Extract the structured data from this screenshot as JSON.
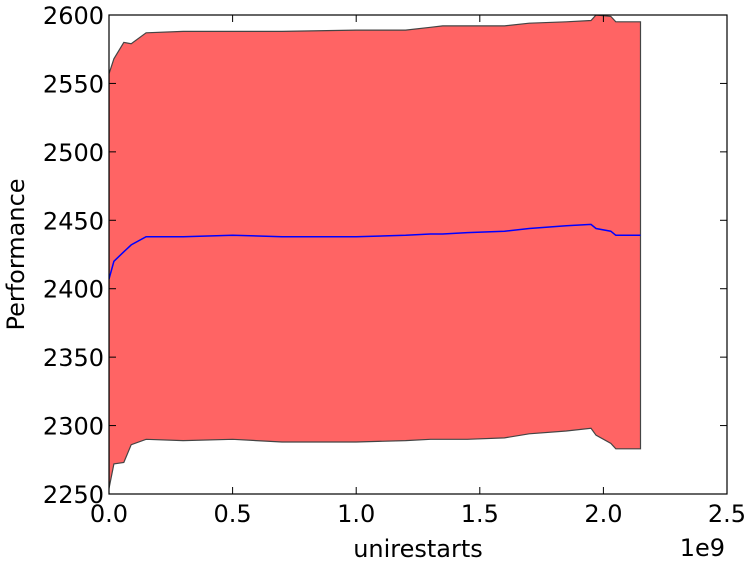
{
  "chart_data": {
    "type": "area",
    "xlabel": "unirestarts",
    "ylabel": "Performance",
    "x_offset_label": "1e9",
    "xlim": [
      0.0,
      2.5
    ],
    "ylim": [
      2250,
      2600
    ],
    "x_ticks": [
      "0.0",
      "0.5",
      "1.0",
      "1.5",
      "2.0",
      "2.5"
    ],
    "y_ticks": [
      "2250",
      "2300",
      "2350",
      "2400",
      "2450",
      "2500",
      "2550",
      "2600"
    ],
    "grid": false,
    "colors": {
      "band": "#ff6464",
      "band_edge": "#444444",
      "mean": "#0000ff"
    },
    "series": [
      {
        "x": [
          0.0,
          0.02,
          0.06,
          0.09,
          0.15,
          0.3,
          0.5,
          0.7,
          1.0,
          1.2,
          1.3,
          1.35,
          1.45,
          1.6,
          1.7,
          1.85,
          1.95,
          1.97,
          2.03,
          2.05,
          2.15
        ],
        "mean": [
          2407,
          2420,
          2427,
          2432,
          2438,
          2438,
          2439,
          2438,
          2438,
          2439,
          2440,
          2440,
          2441,
          2442,
          2444,
          2446,
          2447,
          2444,
          2442,
          2439,
          2439
        ],
        "upper": [
          2557,
          2568,
          2580,
          2579,
          2587,
          2588,
          2588,
          2588,
          2589,
          2589,
          2591,
          2592,
          2592,
          2592,
          2594,
          2595,
          2596,
          2600,
          2599,
          2595,
          2595
        ],
        "lower": [
          2254,
          2272,
          2273,
          2286,
          2290,
          2289,
          2290,
          2288,
          2288,
          2289,
          2290,
          2290,
          2290,
          2291,
          2294,
          2296,
          2298,
          2293,
          2287,
          2283,
          2283
        ]
      }
    ]
  }
}
